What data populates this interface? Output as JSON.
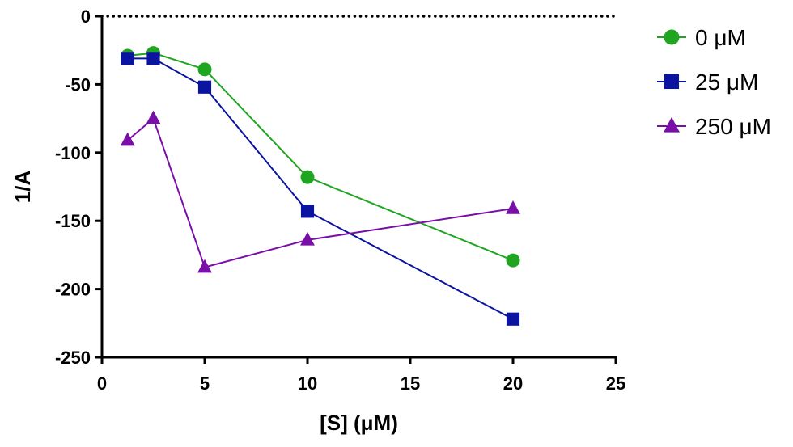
{
  "chart_data": {
    "type": "line",
    "title": "",
    "xlabel": "[S] (μM)",
    "ylabel": "1/A",
    "xlim": [
      0,
      25
    ],
    "ylim": [
      -250,
      0
    ],
    "x_ticks": [
      0,
      5,
      10,
      15,
      20,
      25
    ],
    "y_ticks": [
      0,
      -50,
      -100,
      -150,
      -200,
      -250
    ],
    "x_tick_labels": [
      "0",
      "5",
      "10",
      "15",
      "20",
      "25"
    ],
    "y_tick_labels": [
      "0",
      "-50",
      "-100",
      "-150",
      "-200",
      "-250"
    ],
    "reference_line": {
      "y": 0,
      "style": "dotted"
    },
    "legend_position": "right",
    "series": [
      {
        "name": "0 μM",
        "marker": "circle",
        "color": "#1fa51f",
        "x": [
          1.25,
          2.5,
          5,
          10,
          20
        ],
        "y": [
          -29,
          -27,
          -39,
          -118,
          -179
        ]
      },
      {
        "name": "25 μM",
        "marker": "square",
        "color": "#0a14a0",
        "x": [
          1.25,
          2.5,
          5,
          10,
          20
        ],
        "y": [
          -31,
          -31,
          -52,
          -143,
          -222
        ]
      },
      {
        "name": "250 μM",
        "marker": "triangle",
        "color": "#7a0fa8",
        "x": [
          1.25,
          2.5,
          5,
          10,
          20
        ],
        "y": [
          -91,
          -75,
          -184,
          -164,
          -141
        ]
      }
    ]
  }
}
